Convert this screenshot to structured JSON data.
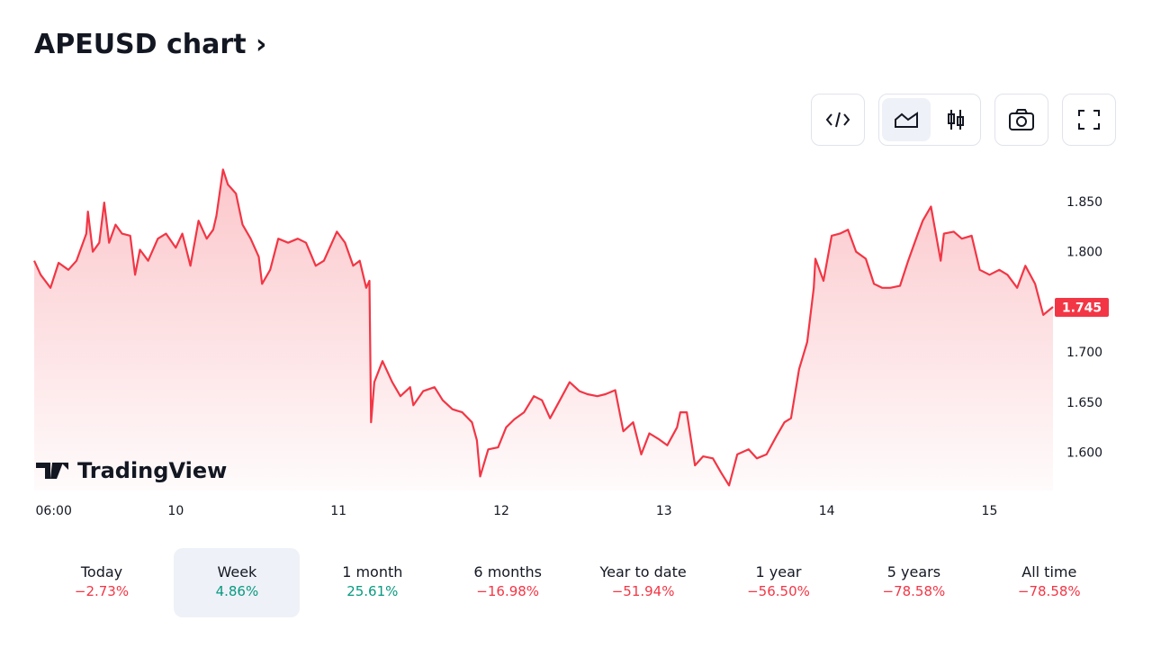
{
  "header": {
    "title": "APEUSD chart"
  },
  "chart_data": {
    "type": "line",
    "color": "#f23645",
    "grid": false,
    "x": [
      9.13,
      9.17,
      9.23,
      9.28,
      9.34,
      9.39,
      9.45,
      9.46,
      9.49,
      9.53,
      9.56,
      9.59,
      9.63,
      9.67,
      9.72,
      9.75,
      9.78,
      9.83,
      9.89,
      9.94,
      10.0,
      10.04,
      10.09,
      10.14,
      10.19,
      10.23,
      10.25,
      10.29,
      10.32,
      10.37,
      10.41,
      10.46,
      10.51,
      10.53,
      10.58,
      10.63,
      10.69,
      10.75,
      10.8,
      10.86,
      10.91,
      10.99,
      11.04,
      11.09,
      11.13,
      11.17,
      11.19,
      11.2,
      11.22,
      11.27,
      11.33,
      11.38,
      11.44,
      11.46,
      11.52,
      11.59,
      11.64,
      11.7,
      11.76,
      11.82,
      11.85,
      11.87,
      11.92,
      11.98,
      12.03,
      12.08,
      12.14,
      12.2,
      12.25,
      12.3,
      12.36,
      12.42,
      12.48,
      12.53,
      12.59,
      12.64,
      12.7,
      12.75,
      12.81,
      12.86,
      12.91,
      12.97,
      13.02,
      13.08,
      13.1,
      13.14,
      13.19,
      13.24,
      13.3,
      13.35,
      13.4,
      13.45,
      13.52,
      13.57,
      13.63,
      13.69,
      13.74,
      13.78,
      13.83,
      13.88,
      13.92,
      13.93,
      13.98,
      14.03,
      14.08,
      14.13,
      14.18,
      14.24,
      14.29,
      14.34,
      14.39,
      14.45,
      14.5,
      14.56,
      14.59,
      14.64,
      14.7,
      14.72,
      14.78,
      14.83,
      14.89,
      14.94,
      15.0,
      15.06,
      15.11,
      15.17,
      15.22,
      15.28,
      15.33,
      15.39
    ],
    "values": [
      1.791,
      1.777,
      1.764,
      1.789,
      1.782,
      1.791,
      1.818,
      1.84,
      1.8,
      1.809,
      1.849,
      1.809,
      1.827,
      1.818,
      1.816,
      1.777,
      1.802,
      1.791,
      1.813,
      1.818,
      1.804,
      1.818,
      1.786,
      1.831,
      1.813,
      1.822,
      1.836,
      1.882,
      1.867,
      1.858,
      1.827,
      1.813,
      1.795,
      1.768,
      1.782,
      1.813,
      1.809,
      1.813,
      1.809,
      1.786,
      1.791,
      1.82,
      1.809,
      1.786,
      1.791,
      1.764,
      1.771,
      1.63,
      1.67,
      1.691,
      1.67,
      1.656,
      1.665,
      1.647,
      1.661,
      1.665,
      1.652,
      1.643,
      1.64,
      1.63,
      1.612,
      1.576,
      1.603,
      1.605,
      1.625,
      1.633,
      1.64,
      1.656,
      1.652,
      1.634,
      1.652,
      1.67,
      1.661,
      1.658,
      1.656,
      1.658,
      1.662,
      1.621,
      1.63,
      1.598,
      1.619,
      1.613,
      1.607,
      1.625,
      1.64,
      1.64,
      1.587,
      1.596,
      1.594,
      1.58,
      1.567,
      1.598,
      1.603,
      1.594,
      1.598,
      1.616,
      1.63,
      1.634,
      1.683,
      1.71,
      1.764,
      1.793,
      1.771,
      1.816,
      1.818,
      1.822,
      1.8,
      1.793,
      1.768,
      1.764,
      1.764,
      1.766,
      1.791,
      1.818,
      1.831,
      1.845,
      1.791,
      1.818,
      1.82,
      1.813,
      1.816,
      1.782,
      1.777,
      1.782,
      1.777,
      1.764,
      1.786,
      1.768,
      1.737,
      1.745
    ],
    "last_price": 1.745,
    "xlim": [
      9.13,
      15.39
    ],
    "xticks": [
      {
        "value": 9.25,
        "label": "06:00"
      },
      10,
      11,
      12,
      13,
      14,
      15
    ],
    "ylim": [
      1.562,
      1.889
    ],
    "yticks": [
      {
        "value": 1.6,
        "label": "1.600"
      },
      {
        "value": 1.65,
        "label": "1.650"
      },
      {
        "value": 1.7,
        "label": "1.700"
      },
      {
        "value": 1.8,
        "label": "1.800"
      },
      {
        "value": 1.85,
        "label": "1.850"
      }
    ],
    "watermark": "TradingView"
  },
  "periods": [
    {
      "label": "Today",
      "change": "−2.73%",
      "color": "#f23645"
    },
    {
      "label": "Week",
      "change": "4.86%",
      "color": "#089981",
      "selected": true
    },
    {
      "label": "1 month",
      "change": "25.61%",
      "color": "#089981"
    },
    {
      "label": "6 months",
      "change": "−16.98%",
      "color": "#f23645"
    },
    {
      "label": "Year to date",
      "change": "−51.94%",
      "color": "#f23645"
    },
    {
      "label": "1 year",
      "change": "−56.50%",
      "color": "#f23645"
    },
    {
      "label": "5 years",
      "change": "−78.58%",
      "color": "#f23645"
    },
    {
      "label": "All time",
      "change": "−78.58%",
      "color": "#f23645"
    }
  ]
}
